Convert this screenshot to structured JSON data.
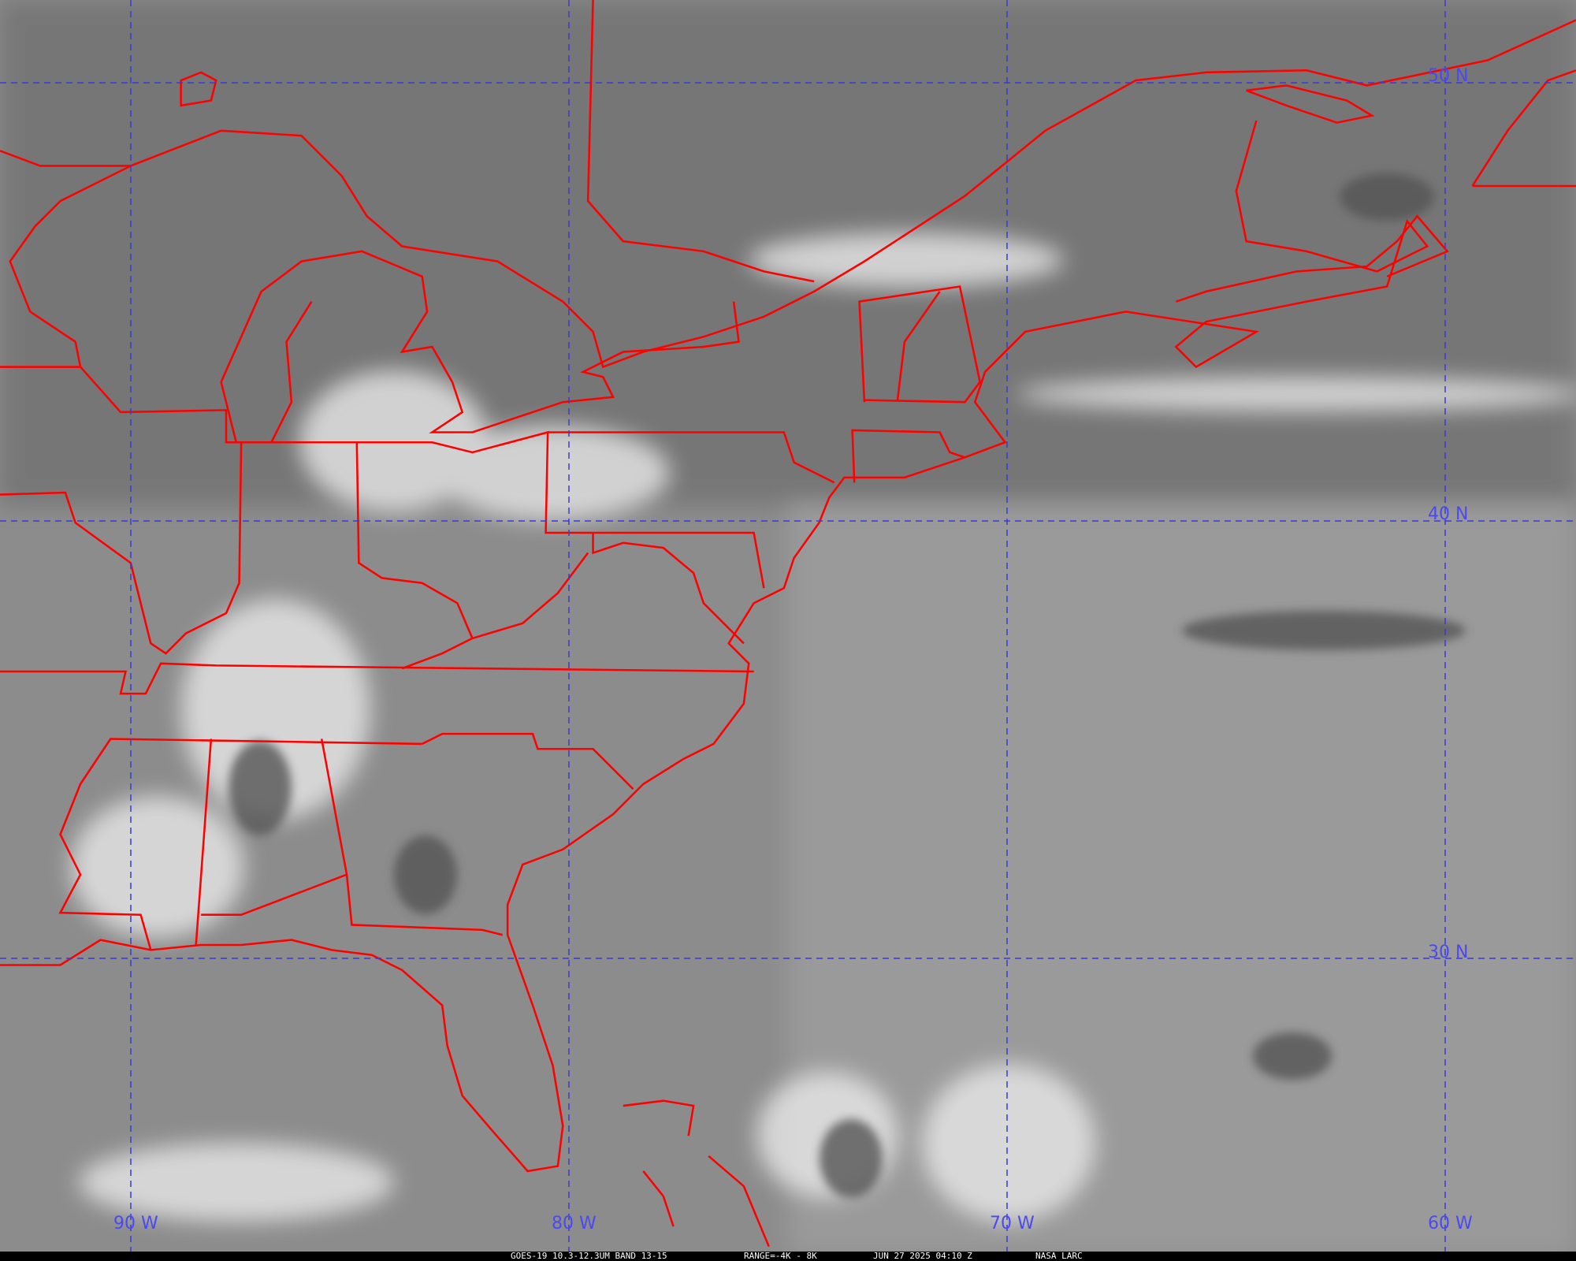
{
  "map": {
    "longitude_labels": [
      "90 W",
      "80 W",
      "70 W",
      "60 W"
    ],
    "latitude_labels": [
      "50 N",
      "40 N",
      "30 N"
    ],
    "colors": {
      "borders": "#ff0000",
      "graticule": "#3a3ad0",
      "labels": "#4a4af0",
      "background": "#8a8a8a"
    }
  },
  "caption": {
    "satellite": "GOES-19 10.3-12.3UM BAND 13-15",
    "range": "RANGE=-4K - 8K",
    "timestamp": "JUN 27 2025 04:10 Z",
    "credit": "NASA LARC"
  }
}
